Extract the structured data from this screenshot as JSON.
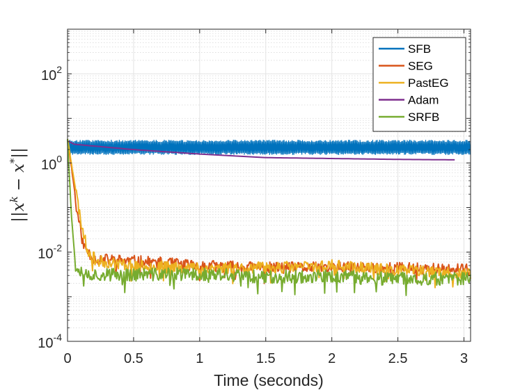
{
  "chart_data": {
    "type": "line",
    "title": "",
    "xlabel": "Time (seconds)",
    "ylabel": "||x^k - x^*||",
    "ylabel_parts": {
      "norm_open": "||",
      "base": "x",
      "sup": "k",
      "minus": " − ",
      "base2": "x",
      "sup2": "*",
      "norm_close": "||"
    },
    "xscale": "linear",
    "yscale": "log",
    "xlim": [
      0,
      3.05
    ],
    "ylim_exp": [
      -4,
      3
    ],
    "x_ticks": [
      0,
      0.5,
      1,
      1.5,
      2,
      2.5,
      3
    ],
    "x_tick_labels": [
      "0",
      "0.5",
      "1",
      "1.5",
      "2",
      "2.5",
      "3"
    ],
    "y_ticks": [
      {
        "base": "10",
        "exp": "-4",
        "value_exp": -4
      },
      {
        "base": "10",
        "exp": "-2",
        "value_exp": -2
      },
      {
        "base": "10",
        "exp": "0",
        "value_exp": 0
      },
      {
        "base": "10",
        "exp": "2",
        "value_exp": 2
      }
    ],
    "grid": true,
    "minor_grid": true,
    "legend_position": "top-right",
    "series": [
      {
        "name": "SFB",
        "color": "#0072BD",
        "style": "band",
        "t_end": 3.05,
        "band_log10": [
          0.18,
          0.52
        ]
      },
      {
        "name": "SEG",
        "color": "#D95319",
        "style": "noisy",
        "x": [
          0,
          0.08,
          0.12,
          0.2,
          0.5,
          1.0,
          1.5,
          2.0,
          2.5,
          3.05
        ],
        "log10": [
          0.55,
          -1.2,
          -1.85,
          -2.15,
          -2.2,
          -2.3,
          -2.35,
          -2.35,
          -2.35,
          -2.4
        ],
        "noise": 0.13,
        "seed": 11
      },
      {
        "name": "PastEG",
        "color": "#EDB120",
        "style": "noisy",
        "x": [
          0,
          0.1,
          0.15,
          0.22,
          0.5,
          1.0,
          1.5,
          2.0,
          2.5,
          3.05
        ],
        "log10": [
          0.55,
          -1.3,
          -1.95,
          -2.2,
          -2.3,
          -2.35,
          -2.35,
          -2.3,
          -2.4,
          -2.5
        ],
        "noise": 0.13,
        "seed": 23
      },
      {
        "name": "Adam",
        "color": "#7E2F8E",
        "style": "smooth",
        "x": [
          0,
          0.05,
          0.5,
          1.0,
          1.5,
          2.0,
          2.5,
          2.93
        ],
        "log10": [
          0.5,
          0.42,
          0.3,
          0.2,
          0.12,
          0.1,
          0.08,
          0.07
        ]
      },
      {
        "name": "SRFB",
        "color": "#77AC30",
        "style": "noisy",
        "x": [
          0,
          0.03,
          0.06,
          0.15,
          0.5,
          1.0,
          1.5,
          2.0,
          2.5,
          3.05
        ],
        "log10": [
          0.55,
          -1.2,
          -2.3,
          -2.5,
          -2.5,
          -2.5,
          -2.55,
          -2.55,
          -2.6,
          -2.6
        ],
        "noise": 0.15,
        "seed": 37
      }
    ]
  }
}
